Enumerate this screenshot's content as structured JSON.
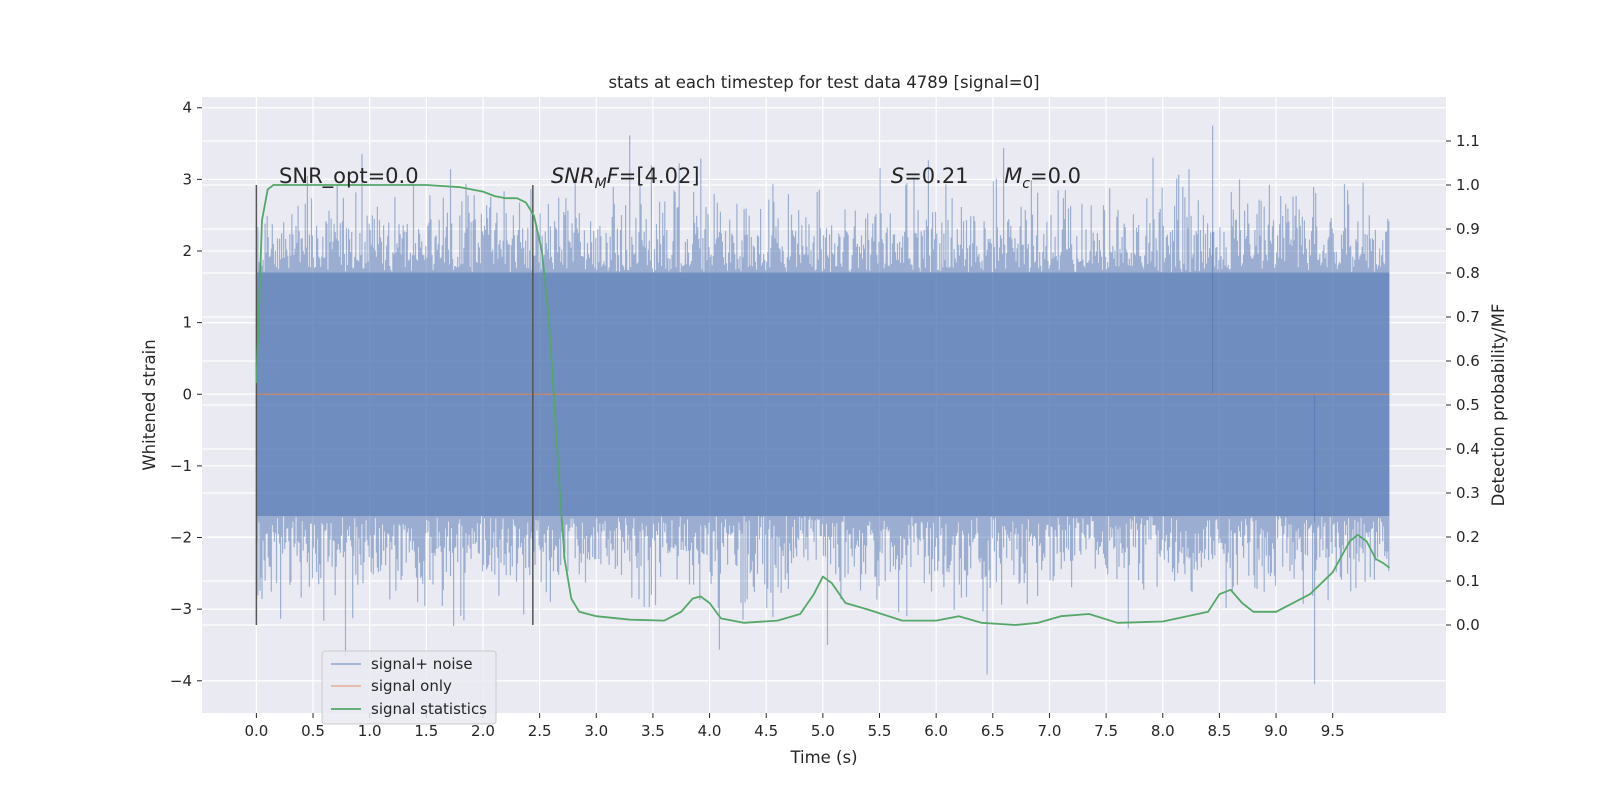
{
  "chart_data": {
    "type": "line",
    "title": "stats at each timestep for test data 4789 [signal=0]",
    "xlabel": "Time (s)",
    "ylabel_left": "Whitened strain",
    "ylabel_right": "Detection probability/MF",
    "xlim": [
      -0.48,
      10.5
    ],
    "ylim_left": [
      -4.45,
      4.15
    ],
    "ylim_right": [
      -0.2,
      1.2
    ],
    "x_ticks": [
      0.0,
      0.5,
      1.0,
      1.5,
      2.0,
      2.5,
      3.0,
      3.5,
      4.0,
      4.5,
      5.0,
      5.5,
      6.0,
      6.5,
      7.0,
      7.5,
      8.0,
      8.5,
      9.0,
      9.5
    ],
    "x_tick_labels": [
      "0.0",
      "0.5",
      "1.0",
      "1.5",
      "2.0",
      "2.5",
      "3.0",
      "3.5",
      "4.0",
      "4.5",
      "5.0",
      "5.5",
      "6.0",
      "6.5",
      "7.0",
      "7.5",
      "8.0",
      "8.5",
      "9.0",
      "9.5"
    ],
    "y_ticks_left": [
      -4,
      -3,
      -2,
      -1,
      0,
      1,
      2,
      3,
      4
    ],
    "y_tick_labels_left": [
      "−4",
      "−3",
      "−2",
      "−1",
      "0",
      "1",
      "2",
      "3",
      "4"
    ],
    "y_ticks_right": [
      0.0,
      0.1,
      0.2,
      0.3,
      0.4,
      0.5,
      0.6,
      0.7,
      0.8,
      0.9,
      1.0,
      1.1
    ],
    "y_tick_labels_right": [
      "0.0",
      "0.1",
      "0.2",
      "0.3",
      "0.4",
      "0.5",
      "0.6",
      "0.7",
      "0.8",
      "0.9",
      "1.0",
      "1.1"
    ],
    "grid": true,
    "legend_placement": "lower-left",
    "vertical_lines": [
      0.0,
      2.44
    ],
    "vertical_line_range_right": [
      0.0,
      1.0
    ],
    "annotations": [
      {
        "base": "SNR_opt=0.0",
        "sub": "",
        "tail": "",
        "x": 0.2,
        "y_right": 1.0
      },
      {
        "base": "SNR",
        "sub": "M",
        "tail": "F=[4.02]",
        "x": 2.6,
        "y_right": 1.0
      },
      {
        "base": "S",
        "sub": "",
        "tail": "=0.21",
        "x": 5.6,
        "y_right": 1.0
      },
      {
        "base": "M",
        "sub": "c",
        "tail": "=0.0",
        "x": 6.6,
        "y_right": 1.0
      }
    ],
    "series": [
      {
        "name": "signal+ noise",
        "color": "#4c72b0",
        "axis": "left",
        "t_range": [
          0.0,
          10.0
        ],
        "envelope": {
          "core_abs": 1.7,
          "min_range": [
            -4.05,
            3.75
          ]
        }
      },
      {
        "name": "signal only",
        "color": "#dd8452",
        "axis": "left",
        "x": [
          0.0,
          10.0
        ],
        "y": [
          0.0,
          0.0
        ]
      },
      {
        "name": "signal statistics",
        "color": "#55a868",
        "axis": "right",
        "x": [
          0.0,
          0.05,
          0.1,
          0.15,
          0.2,
          0.3,
          0.5,
          1.0,
          1.5,
          1.8,
          2.0,
          2.1,
          2.2,
          2.3,
          2.38,
          2.45,
          2.52,
          2.58,
          2.63,
          2.68,
          2.72,
          2.78,
          2.85,
          3.0,
          3.3,
          3.6,
          3.75,
          3.85,
          3.92,
          4.0,
          4.1,
          4.3,
          4.6,
          4.8,
          4.92,
          5.0,
          5.08,
          5.2,
          5.4,
          5.7,
          6.0,
          6.2,
          6.4,
          6.7,
          6.9,
          7.1,
          7.35,
          7.6,
          8.0,
          8.4,
          8.5,
          8.6,
          8.7,
          8.8,
          9.0,
          9.3,
          9.5,
          9.65,
          9.72,
          9.8,
          9.88,
          9.95,
          10.0
        ],
        "y": [
          0.55,
          0.92,
          0.99,
          1.0,
          1.0,
          1.0,
          1.0,
          1.0,
          1.0,
          0.995,
          0.985,
          0.975,
          0.97,
          0.97,
          0.96,
          0.93,
          0.85,
          0.7,
          0.5,
          0.3,
          0.15,
          0.06,
          0.03,
          0.02,
          0.012,
          0.01,
          0.03,
          0.06,
          0.065,
          0.05,
          0.015,
          0.005,
          0.01,
          0.025,
          0.07,
          0.11,
          0.095,
          0.05,
          0.035,
          0.01,
          0.01,
          0.02,
          0.005,
          0.0,
          0.005,
          0.02,
          0.025,
          0.005,
          0.008,
          0.03,
          0.07,
          0.08,
          0.05,
          0.03,
          0.03,
          0.07,
          0.12,
          0.19,
          0.205,
          0.19,
          0.15,
          0.14,
          0.13
        ]
      }
    ]
  }
}
